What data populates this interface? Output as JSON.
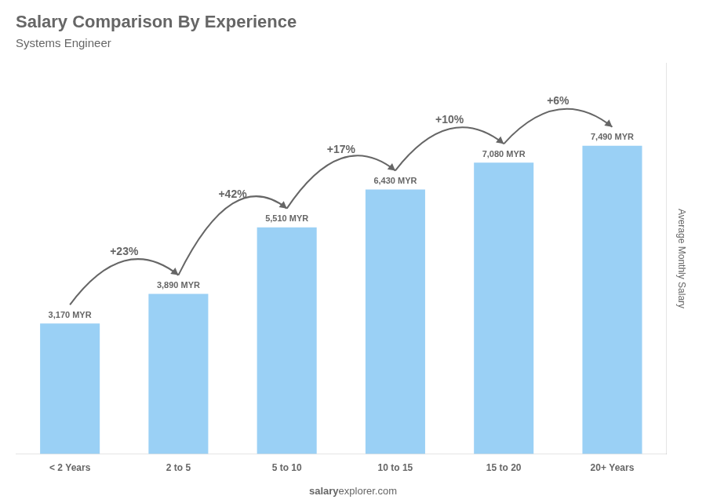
{
  "chart_data": {
    "type": "bar",
    "title": "Salary Comparison By Experience",
    "subtitle": "Systems Engineer",
    "y_label": "Average Monthly Salary",
    "categories": [
      "< 2 Years",
      "2 to 5",
      "5 to 10",
      "10 to 15",
      "15 to 20",
      "20+ Years"
    ],
    "values": [
      3170,
      3890,
      5510,
      6430,
      7080,
      7490
    ],
    "value_labels": [
      "3,170 MYR",
      "3,890 MYR",
      "5,510 MYR",
      "6,430 MYR",
      "7,080 MYR",
      "7,490 MYR"
    ],
    "data_labels": true,
    "annotations": [
      "+23%",
      "+42%",
      "+17%",
      "+10%",
      "+6%"
    ],
    "footer": [
      "salary",
      "explorer.com"
    ],
    "ylim": [
      0,
      9500
    ],
    "grid": false,
    "tick_labels": "x"
  }
}
